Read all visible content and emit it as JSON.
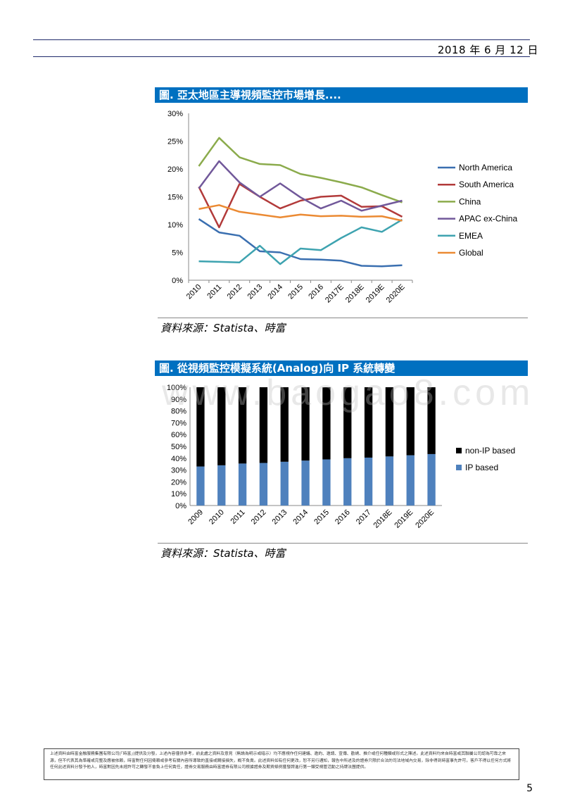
{
  "header": {
    "date": "2018 年 6 月 12 日"
  },
  "figures": {
    "fig1": {
      "title": "圖. 亞太地區主導視頻監控市場增長....",
      "source": "資料來源：Statista、時富"
    },
    "fig2": {
      "title": "圖. 從視頻監控模擬系統(Analog)向 IP 系統轉變",
      "source": "資料來源：Statista、時富"
    }
  },
  "watermark": "www.baogao8.com",
  "footer": {
    "disclaimer": "上述資料由時富金融服務集團有限公司(「時富」)提供及分發，上述內容僅供參考，前此處之資料及意見（無論為明示或暗示）均不應視作任何建議、邀約、邀請、宣傳、勸誘、推介或任何種類或形式之陳述。此述資料均來自時富或其聯屬公司認為可靠之來源，但不代表其為準確或完整及應被依賴，時富對任何因倚賴或參考有關內容所導致的直接或間接損失，概不負責。此述資料如有任何更改，恕不另行通知，報告中所述及的證券只限於合法的司法地域內交易，除非得到時富事先許可，客戶不得以任何方式將任何此述資料分發予他人，時富對因先未經許可之轉發不會負上任何責任，證券交易服務由時富證券有限公司根據證券及期貨條例獲發牌進行第一類受規管活動之持牌法團提供。",
    "page_number": "5"
  },
  "chart_data": [
    {
      "type": "line",
      "title": "圖. 亞太地區主導視頻監控市場增長....",
      "x": [
        "2010",
        "2011",
        "2012",
        "2013",
        "2014",
        "2015",
        "2016",
        "2017E",
        "2018E",
        "2019E",
        "2020E"
      ],
      "ylim": [
        0,
        30
      ],
      "yticks": [
        "0%",
        "5%",
        "10%",
        "15%",
        "20%",
        "25%",
        "30%"
      ],
      "grid": false,
      "legend": "right",
      "series": [
        {
          "name": "North America",
          "color": "#3a6fb0",
          "values": [
            11.0,
            8.6,
            8.0,
            5.2,
            5.0,
            3.8,
            3.7,
            3.5,
            2.6,
            2.5,
            2.7
          ]
        },
        {
          "name": "South America",
          "color": "#b23a3a",
          "values": [
            16.8,
            9.5,
            17.3,
            15.0,
            12.9,
            14.3,
            15.0,
            15.2,
            13.2,
            13.3,
            11.4
          ]
        },
        {
          "name": "China",
          "color": "#8bab4c",
          "values": [
            20.5,
            25.6,
            22.1,
            20.9,
            20.7,
            19.1,
            18.4,
            17.6,
            16.7,
            15.3,
            14.0
          ]
        },
        {
          "name": "APAC ex-China",
          "color": "#71589a",
          "values": [
            16.5,
            21.4,
            17.6,
            15.0,
            17.4,
            14.9,
            12.9,
            14.3,
            12.5,
            13.4,
            14.3
          ]
        },
        {
          "name": "EMEA",
          "color": "#3ea3b0",
          "values": [
            3.4,
            3.3,
            3.2,
            6.2,
            2.9,
            5.7,
            5.4,
            7.6,
            9.5,
            8.7,
            10.9
          ]
        },
        {
          "name": "Global",
          "color": "#eb8a33",
          "values": [
            12.8,
            13.5,
            12.3,
            11.8,
            11.3,
            11.8,
            11.5,
            11.6,
            11.4,
            11.5,
            10.7
          ]
        }
      ]
    },
    {
      "type": "bar",
      "stacked": true,
      "title": "圖. 從視頻監控模擬系統(Analog)向 IP 系統轉變",
      "categories": [
        "2009",
        "2010",
        "2011",
        "2012",
        "2013",
        "2014",
        "2015",
        "2016",
        "2017",
        "2018E",
        "2019E",
        "2020E"
      ],
      "ylim": [
        0,
        100
      ],
      "yticks": [
        "0%",
        "10%",
        "20%",
        "30%",
        "40%",
        "50%",
        "60%",
        "70%",
        "80%",
        "90%",
        "100%"
      ],
      "grid": false,
      "legend": "right",
      "series": [
        {
          "name": "IP based",
          "color": "#4f81bd",
          "values": [
            33,
            34,
            35.5,
            36,
            37,
            38,
            39,
            40,
            40.5,
            41.5,
            42.5,
            43.5
          ]
        },
        {
          "name": "non-IP based",
          "color": "#000000",
          "values": [
            67,
            66,
            64.5,
            64,
            63,
            62,
            61,
            60,
            59.5,
            58.5,
            57.5,
            56.5
          ]
        }
      ]
    }
  ]
}
